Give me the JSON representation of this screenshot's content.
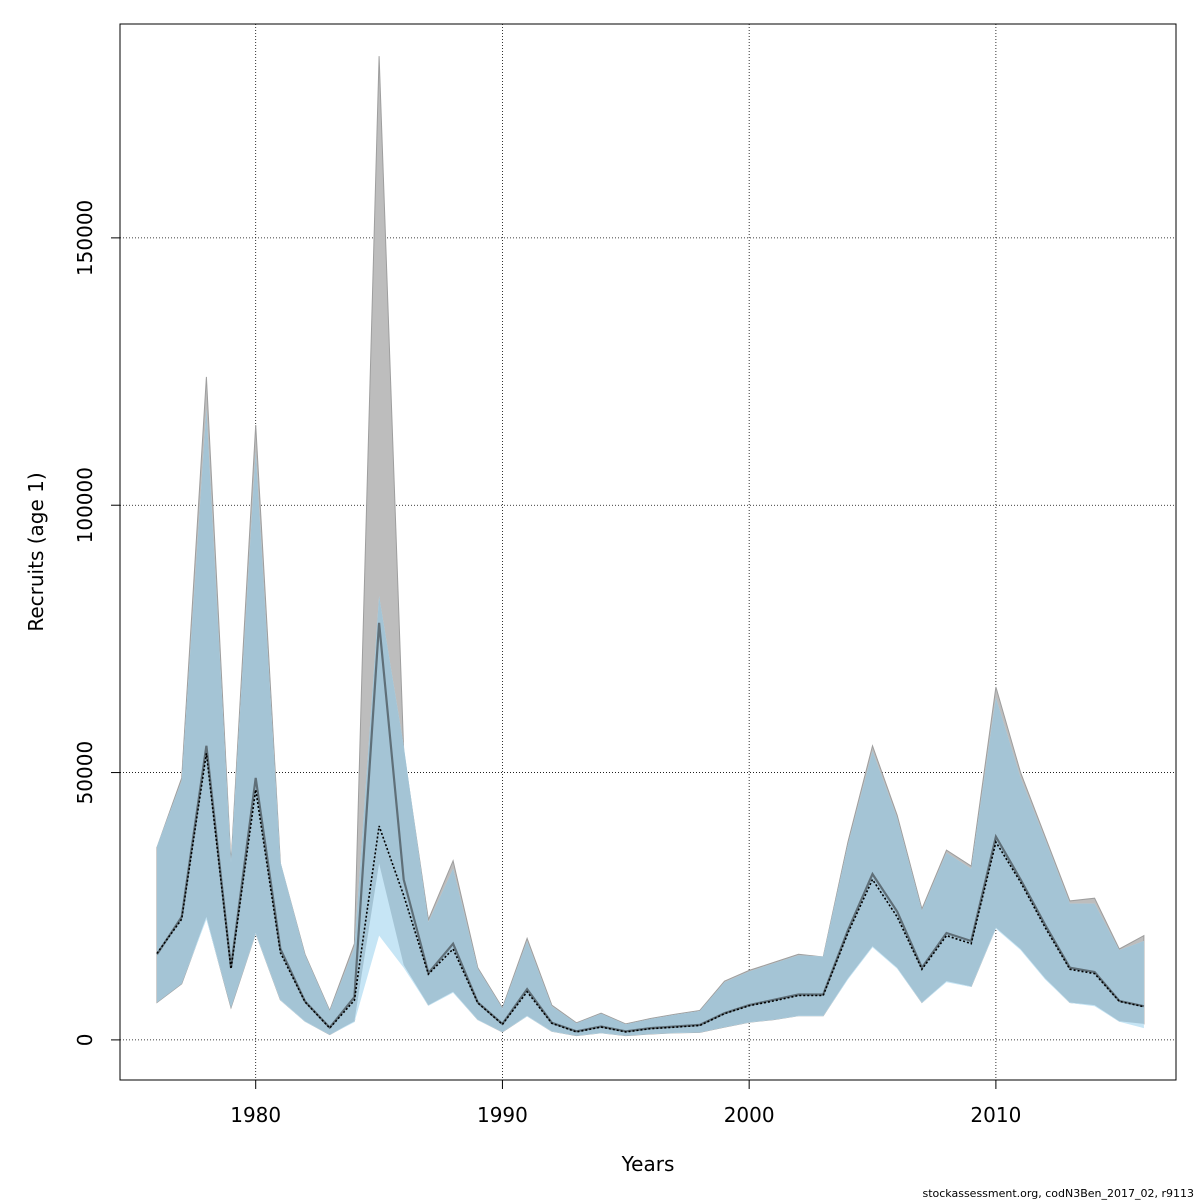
{
  "chart_data": {
    "type": "area",
    "title": "",
    "xlabel": "Years",
    "ylabel": "Recruits (age 1)",
    "xlim": [
      1974.5,
      2017.3
    ],
    "ylim": [
      -7500,
      190000
    ],
    "x_ticks": [
      1980,
      1990,
      2000,
      2010
    ],
    "y_ticks": [
      0,
      50000,
      100000,
      150000
    ],
    "grid": true,
    "colors": {
      "band_previous": "#bdbdbd",
      "band_previous_edge": "#9e9e9e",
      "band_current": "#c6e5f5",
      "overlap": "#a4c4d5",
      "line_previous": "#5f6f78",
      "line_current": "#000000",
      "grid": "#000000"
    },
    "x": [
      1976,
      1977,
      1978,
      1979,
      1980,
      1981,
      1982,
      1983,
      1984,
      1985,
      1986,
      1987,
      1988,
      1989,
      1990,
      1991,
      1992,
      1993,
      1994,
      1995,
      1996,
      1997,
      1998,
      1999,
      2000,
      2001,
      2002,
      2003,
      2004,
      2005,
      2006,
      2007,
      2008,
      2009,
      2010,
      2011,
      2012,
      2013,
      2014,
      2015,
      2016
    ],
    "series": [
      {
        "role": "previous",
        "estimate": [
          16000,
          23000,
          55000,
          13500,
          49000,
          17000,
          7200,
          2300,
          8000,
          78000,
          30000,
          12500,
          18000,
          7000,
          3000,
          9500,
          3200,
          1600,
          2500,
          1600,
          2200,
          2500,
          2800,
          5000,
          6500,
          7500,
          8500,
          8500,
          20500,
          31000,
          24000,
          13500,
          20000,
          18500,
          38000,
          30000,
          21500,
          13500,
          12700,
          7300,
          6300
        ],
        "lower": [
          7000,
          10500,
          23000,
          6000,
          20000,
          7500,
          3500,
          1000,
          3500,
          33000,
          14000,
          6500,
          9000,
          3800,
          1500,
          4500,
          1600,
          800,
          1300,
          800,
          1100,
          1300,
          1400,
          2400,
          3300,
          3800,
          4500,
          4500,
          11500,
          17500,
          13500,
          7000,
          11000,
          10000,
          21000,
          17000,
          11500,
          7000,
          6500,
          3500,
          3000
        ],
        "upper": [
          36000,
          49000,
          124000,
          33000,
          115000,
          33000,
          16000,
          5500,
          18000,
          184000,
          54000,
          22500,
          33500,
          13500,
          6000,
          19000,
          6500,
          3200,
          5000,
          3000,
          4000,
          4800,
          5500,
          11000,
          13000,
          14500,
          16000,
          15500,
          37000,
          55000,
          42000,
          24500,
          35500,
          32500,
          66000,
          50000,
          38000,
          26000,
          26500,
          17000,
          19500
        ]
      },
      {
        "role": "current",
        "estimate": [
          16200,
          22600,
          53600,
          13300,
          46800,
          16300,
          7100,
          2200,
          7400,
          40000,
          27000,
          12300,
          17000,
          6900,
          2900,
          9000,
          3100,
          1500,
          2400,
          1500,
          2100,
          2400,
          2700,
          4900,
          6400,
          7300,
          8300,
          8300,
          20000,
          30000,
          23000,
          13200,
          19500,
          18000,
          37000,
          29500,
          21000,
          13200,
          12400,
          7200,
          6200
        ],
        "lower": [
          7100,
          10600,
          22500,
          6100,
          19800,
          7400,
          3400,
          950,
          3300,
          19500,
          13500,
          6400,
          8800,
          3700,
          1450,
          4400,
          1550,
          780,
          1250,
          780,
          1080,
          1280,
          1380,
          2350,
          3250,
          3750,
          4450,
          4450,
          11300,
          17300,
          13300,
          6900,
          10800,
          9900,
          20800,
          16800,
          11300,
          6900,
          6300,
          3400,
          2200
        ]
      },
      {
        "role": "overlap",
        "upper": [
          36200,
          48500,
          118000,
          33200,
          110000,
          33300,
          15900,
          5400,
          17200,
          83000,
          55000,
          22000,
          32000,
          13300,
          5900,
          18500,
          6300,
          3100,
          4900,
          2900,
          3900,
          4700,
          5400,
          10800,
          12800,
          14300,
          15800,
          15600,
          36500,
          54000,
          41500,
          24200,
          35000,
          32000,
          64000,
          49000,
          37500,
          25500,
          25500,
          16800,
          18500
        ]
      }
    ]
  },
  "credit": "stockassessment.org, codN3Ben_2017_02, r9113"
}
